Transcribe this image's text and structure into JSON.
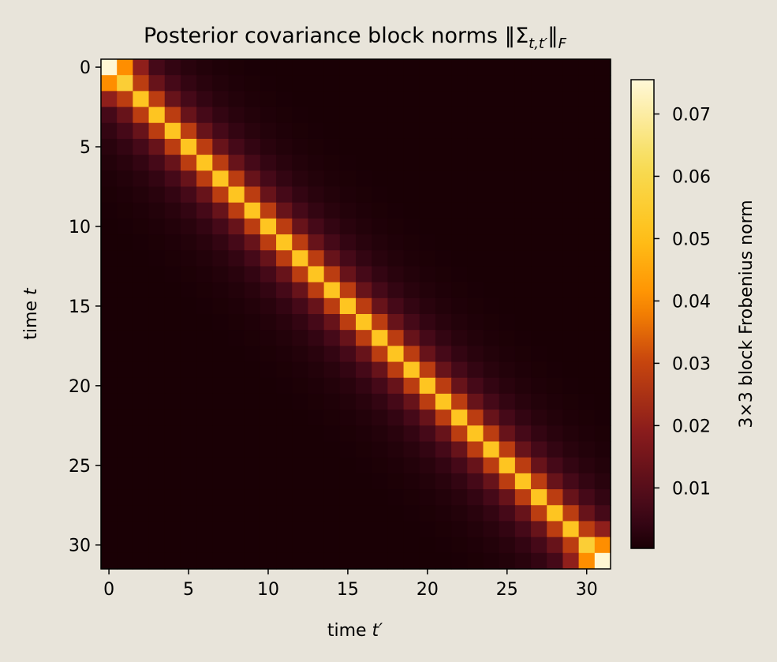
{
  "chart_data": {
    "type": "heatmap",
    "title_main": "Posterior covariance block norms ",
    "title_symbol": "‖Σ",
    "title_subscript": "t,t′",
    "title_close": "‖",
    "title_close_subscript": "F",
    "xlabel_prefix": "time ",
    "xlabel_var": "t′",
    "ylabel_prefix": "time ",
    "ylabel_var": "t",
    "n": 32,
    "x_ticks": [
      "0",
      "5",
      "10",
      "15",
      "20",
      "25",
      "30"
    ],
    "y_ticks": [
      "0",
      "5",
      "10",
      "15",
      "20",
      "25",
      "30"
    ],
    "colorbar": {
      "label": "3×3 block Frobenius norm",
      "ticks": [
        "0.01",
        "0.02",
        "0.03",
        "0.04",
        "0.05",
        "0.06",
        "0.07"
      ],
      "range": [
        0.0003,
        0.0755
      ],
      "colormap": "afmhot-like (black → dark red → orange → yellow → pale cream)"
    },
    "diagonal_values": [
      0.075,
      0.056,
      0.052,
      0.052,
      0.052,
      0.052,
      0.052,
      0.052,
      0.052,
      0.052,
      0.052,
      0.052,
      0.052,
      0.052,
      0.052,
      0.052,
      0.052,
      0.052,
      0.052,
      0.052,
      0.052,
      0.052,
      0.052,
      0.052,
      0.052,
      0.052,
      0.052,
      0.052,
      0.052,
      0.052,
      0.056,
      0.075
    ],
    "offdiag_decay": [
      0.028,
      0.013,
      0.007,
      0.004,
      0.0025,
      0.0016,
      0.001,
      0.0007,
      0.0005
    ],
    "offdiag_corner_adjacent": 0.04,
    "offdiag_corner_second": 0.02,
    "offdiag_floor": 0.0003,
    "colors": {
      "background": "#e8e4da",
      "cmap_stops": [
        "#1a0005",
        "#3d0718",
        "#8a1c1c",
        "#c8460e",
        "#ff8f00",
        "#ffc21a",
        "#f7dc56",
        "#fff8d8"
      ]
    }
  }
}
